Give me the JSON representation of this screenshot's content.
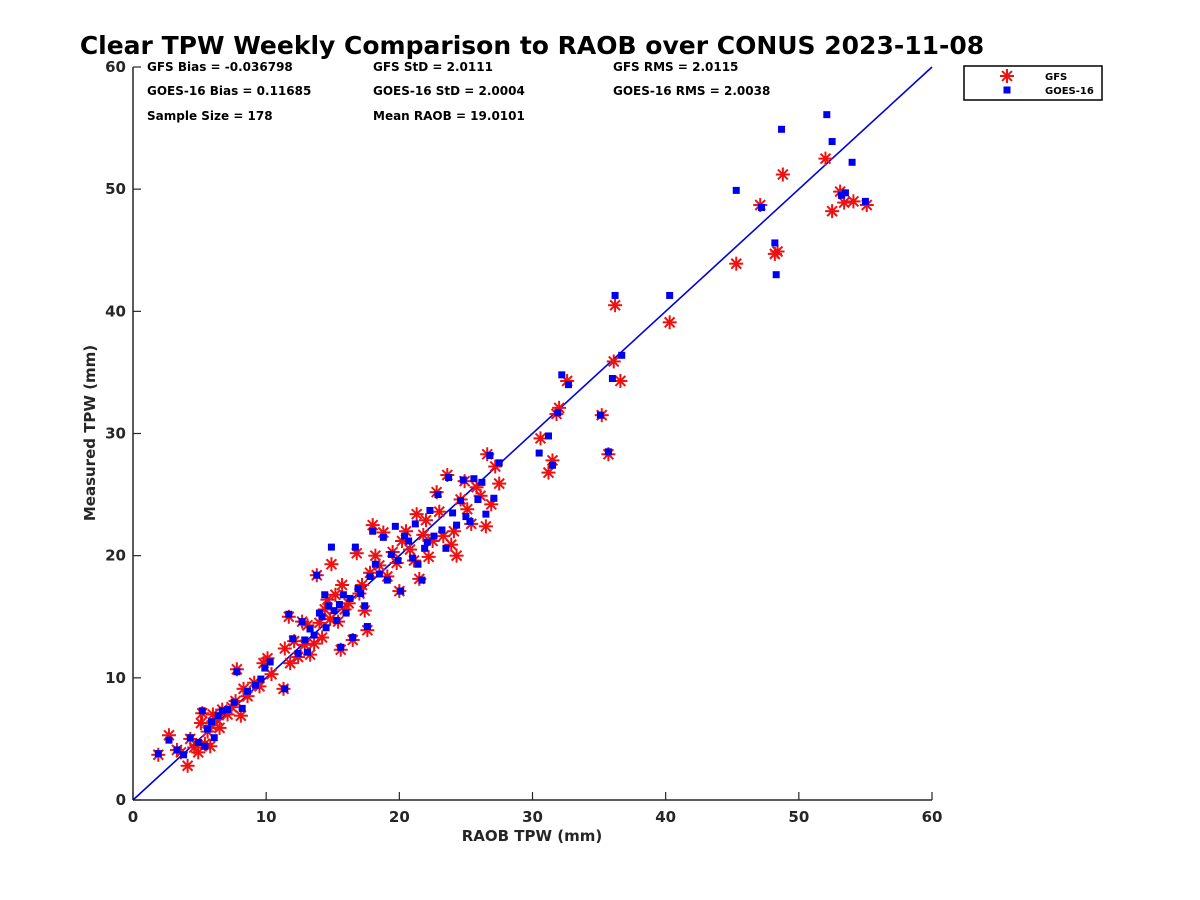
{
  "chart_data": {
    "type": "scatter",
    "title": "Clear TPW Weekly Comparison to RAOB over CONUS 2023-11-08",
    "xlabel": "RAOB TPW (mm)",
    "ylabel": "Measured TPW (mm)",
    "xlim": [
      0,
      60
    ],
    "ylim": [
      0,
      60
    ],
    "xticks": [
      "0",
      "10",
      "20",
      "30",
      "40",
      "50",
      "60"
    ],
    "yticks": [
      "0",
      "10",
      "20",
      "30",
      "40",
      "50",
      "60"
    ],
    "grid": false,
    "legend_position": "top-right, outside plot",
    "reference_line": {
      "label": "",
      "x": [
        0,
        60
      ],
      "y": [
        0,
        60
      ],
      "color": "#0000dd"
    },
    "stats": [
      [
        "GFS Bias = -0.036798",
        "GFS StD = 2.0111",
        "GFS RMS = 2.0115"
      ],
      [
        "GOES-16 Bias = 0.11685",
        "GOES-16 StD = 2.0004",
        "GOES-16 RMS = 2.0038"
      ],
      [
        "Sample Size = 178",
        "Mean RAOB = 19.0101",
        ""
      ]
    ],
    "series": [
      {
        "name": "GFS",
        "marker": "asterisk",
        "color": "#ee1111",
        "points": [
          [
            1.9,
            3.7
          ],
          [
            2.7,
            5.3
          ],
          [
            3.3,
            4.1
          ],
          [
            3.6,
            3.9
          ],
          [
            4.1,
            2.8
          ],
          [
            4.3,
            5.0
          ],
          [
            4.6,
            4.3
          ],
          [
            4.9,
            3.9
          ],
          [
            5.1,
            6.3
          ],
          [
            5.2,
            7.1
          ],
          [
            5.4,
            4.6
          ],
          [
            5.6,
            5.6
          ],
          [
            5.8,
            4.4
          ],
          [
            5.9,
            6.1
          ],
          [
            6.0,
            7.0
          ],
          [
            6.3,
            6.6
          ],
          [
            6.5,
            5.9
          ],
          [
            6.7,
            7.4
          ],
          [
            7.1,
            7.0
          ],
          [
            7.4,
            7.6
          ],
          [
            7.7,
            8.1
          ],
          [
            7.8,
            10.7
          ],
          [
            8.1,
            6.9
          ],
          [
            8.3,
            9.1
          ],
          [
            8.6,
            8.5
          ],
          [
            9.1,
            9.6
          ],
          [
            9.5,
            9.3
          ],
          [
            9.8,
            11.2
          ],
          [
            10.1,
            11.6
          ],
          [
            10.4,
            10.3
          ],
          [
            11.3,
            9.1
          ],
          [
            11.4,
            12.4
          ],
          [
            11.7,
            15.0
          ],
          [
            11.8,
            11.2
          ],
          [
            12.1,
            13.0
          ],
          [
            12.4,
            11.7
          ],
          [
            12.7,
            14.6
          ],
          [
            12.9,
            12.7
          ],
          [
            13.1,
            14.3
          ],
          [
            13.3,
            11.9
          ],
          [
            13.6,
            12.8
          ],
          [
            13.8,
            18.4
          ],
          [
            14.0,
            14.5
          ],
          [
            14.2,
            13.3
          ],
          [
            14.4,
            15.6
          ],
          [
            14.6,
            16.4
          ],
          [
            14.8,
            14.8
          ],
          [
            14.9,
            19.3
          ],
          [
            15.2,
            16.8
          ],
          [
            15.4,
            14.6
          ],
          [
            15.6,
            12.3
          ],
          [
            15.7,
            17.6
          ],
          [
            15.9,
            15.6
          ],
          [
            16.2,
            16.1
          ],
          [
            16.5,
            13.1
          ],
          [
            16.8,
            20.2
          ],
          [
            17.0,
            16.9
          ],
          [
            17.2,
            17.6
          ],
          [
            17.4,
            15.5
          ],
          [
            17.6,
            13.9
          ],
          [
            17.8,
            18.6
          ],
          [
            18.0,
            22.5
          ],
          [
            18.2,
            20.0
          ],
          [
            18.5,
            19.2
          ],
          [
            18.8,
            21.9
          ],
          [
            19.1,
            18.3
          ],
          [
            19.5,
            20.3
          ],
          [
            19.8,
            19.4
          ],
          [
            20.0,
            17.1
          ],
          [
            20.2,
            21.2
          ],
          [
            20.5,
            22.0
          ],
          [
            20.8,
            20.5
          ],
          [
            21.1,
            19.6
          ],
          [
            21.3,
            23.4
          ],
          [
            21.5,
            18.1
          ],
          [
            21.8,
            21.7
          ],
          [
            22.0,
            22.9
          ],
          [
            22.2,
            19.9
          ],
          [
            22.5,
            21.2
          ],
          [
            22.8,
            25.2
          ],
          [
            23.0,
            23.6
          ],
          [
            23.3,
            21.6
          ],
          [
            23.6,
            26.6
          ],
          [
            23.9,
            20.9
          ],
          [
            24.1,
            22.0
          ],
          [
            24.3,
            20.0
          ],
          [
            24.6,
            24.6
          ],
          [
            24.9,
            26.1
          ],
          [
            25.1,
            23.8
          ],
          [
            25.4,
            22.6
          ],
          [
            25.8,
            25.6
          ],
          [
            26.1,
            24.9
          ],
          [
            26.5,
            22.4
          ],
          [
            26.6,
            28.3
          ],
          [
            26.9,
            24.2
          ],
          [
            27.2,
            27.3
          ],
          [
            27.5,
            25.9
          ],
          [
            30.6,
            29.6
          ],
          [
            31.2,
            26.8
          ],
          [
            31.5,
            27.8
          ],
          [
            31.8,
            31.6
          ],
          [
            32.0,
            32.1
          ],
          [
            32.6,
            34.3
          ],
          [
            35.2,
            31.5
          ],
          [
            35.7,
            28.3
          ],
          [
            36.1,
            35.9
          ],
          [
            36.2,
            40.5
          ],
          [
            36.6,
            34.3
          ],
          [
            40.3,
            39.1
          ],
          [
            45.3,
            43.9
          ],
          [
            47.1,
            48.7
          ],
          [
            48.2,
            44.7
          ],
          [
            48.4,
            44.9
          ],
          [
            48.8,
            51.2
          ],
          [
            52.0,
            52.5
          ],
          [
            52.5,
            48.2
          ],
          [
            53.1,
            49.8
          ],
          [
            53.4,
            48.9
          ],
          [
            54.1,
            49.0
          ],
          [
            55.1,
            48.7
          ]
        ]
      },
      {
        "name": "GOES-16",
        "marker": "square",
        "color": "#0000ee",
        "points": [
          [
            1.9,
            3.8
          ],
          [
            2.7,
            4.9
          ],
          [
            3.3,
            4.1
          ],
          [
            3.8,
            3.7
          ],
          [
            4.3,
            5.1
          ],
          [
            4.9,
            4.7
          ],
          [
            5.2,
            7.3
          ],
          [
            5.4,
            4.4
          ],
          [
            5.6,
            5.8
          ],
          [
            5.9,
            6.4
          ],
          [
            6.1,
            5.1
          ],
          [
            6.4,
            6.9
          ],
          [
            6.7,
            7.3
          ],
          [
            7.1,
            7.4
          ],
          [
            7.6,
            8.0
          ],
          [
            7.8,
            10.5
          ],
          [
            8.2,
            7.5
          ],
          [
            8.6,
            8.9
          ],
          [
            9.2,
            9.4
          ],
          [
            9.6,
            9.9
          ],
          [
            9.9,
            10.8
          ],
          [
            10.3,
            11.3
          ],
          [
            11.4,
            9.1
          ],
          [
            11.7,
            15.2
          ],
          [
            12.0,
            13.2
          ],
          [
            12.4,
            12.0
          ],
          [
            12.7,
            14.6
          ],
          [
            12.9,
            13.1
          ],
          [
            13.1,
            12.1
          ],
          [
            13.3,
            14.0
          ],
          [
            13.6,
            13.5
          ],
          [
            13.8,
            18.4
          ],
          [
            14.0,
            15.3
          ],
          [
            14.2,
            15.0
          ],
          [
            14.4,
            16.8
          ],
          [
            14.5,
            14.1
          ],
          [
            14.7,
            15.9
          ],
          [
            14.9,
            20.7
          ],
          [
            15.1,
            15.5
          ],
          [
            15.3,
            14.7
          ],
          [
            15.5,
            16.0
          ],
          [
            15.6,
            12.5
          ],
          [
            15.8,
            16.8
          ],
          [
            16.0,
            15.3
          ],
          [
            16.3,
            16.5
          ],
          [
            16.5,
            13.3
          ],
          [
            16.7,
            20.7
          ],
          [
            16.9,
            17.3
          ],
          [
            17.1,
            16.9
          ],
          [
            17.4,
            15.9
          ],
          [
            17.6,
            14.2
          ],
          [
            17.8,
            18.3
          ],
          [
            18.0,
            22.0
          ],
          [
            18.2,
            19.3
          ],
          [
            18.5,
            18.5
          ],
          [
            18.8,
            21.5
          ],
          [
            19.1,
            18.0
          ],
          [
            19.4,
            20.1
          ],
          [
            19.7,
            22.4
          ],
          [
            19.9,
            19.6
          ],
          [
            20.1,
            17.1
          ],
          [
            20.4,
            21.6
          ],
          [
            20.7,
            21.2
          ],
          [
            21.0,
            19.8
          ],
          [
            21.2,
            22.6
          ],
          [
            21.4,
            19.3
          ],
          [
            21.7,
            18.0
          ],
          [
            21.9,
            20.6
          ],
          [
            22.1,
            21.1
          ],
          [
            22.3,
            23.7
          ],
          [
            22.6,
            21.6
          ],
          [
            22.9,
            25.0
          ],
          [
            23.2,
            22.1
          ],
          [
            23.5,
            20.6
          ],
          [
            23.7,
            26.4
          ],
          [
            24.0,
            23.5
          ],
          [
            24.3,
            22.5
          ],
          [
            24.6,
            24.5
          ],
          [
            24.8,
            26.2
          ],
          [
            25.0,
            23.2
          ],
          [
            25.3,
            22.8
          ],
          [
            25.6,
            26.3
          ],
          [
            25.9,
            24.6
          ],
          [
            26.2,
            26.0
          ],
          [
            26.5,
            23.4
          ],
          [
            26.8,
            28.2
          ],
          [
            27.1,
            24.7
          ],
          [
            27.5,
            27.6
          ],
          [
            30.5,
            28.4
          ],
          [
            31.2,
            29.8
          ],
          [
            31.5,
            27.4
          ],
          [
            31.9,
            31.7
          ],
          [
            32.2,
            34.8
          ],
          [
            32.7,
            34.0
          ],
          [
            35.1,
            31.5
          ],
          [
            35.7,
            28.5
          ],
          [
            36.0,
            34.5
          ],
          [
            36.2,
            41.3
          ],
          [
            36.7,
            36.4
          ],
          [
            40.3,
            41.3
          ],
          [
            45.3,
            49.9
          ],
          [
            47.2,
            48.5
          ],
          [
            48.2,
            45.6
          ],
          [
            48.3,
            43.0
          ],
          [
            48.7,
            54.9
          ],
          [
            52.1,
            56.1
          ],
          [
            52.5,
            53.9
          ],
          [
            53.2,
            49.5
          ],
          [
            53.5,
            49.7
          ],
          [
            54.0,
            52.2
          ],
          [
            55.0,
            49.0
          ]
        ]
      }
    ]
  }
}
